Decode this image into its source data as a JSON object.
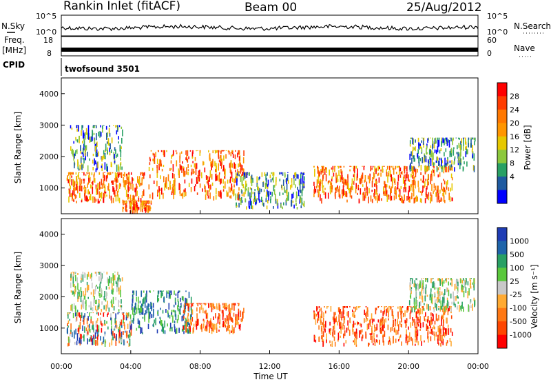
{
  "header": {
    "station": "Rankin Inlet (fitACF)",
    "beam": "Beam 00",
    "date": "25/Aug/2012"
  },
  "strips": {
    "noise": {
      "left_label": "N.Sky",
      "right_label": "N.Search",
      "left_ticks": [
        "10^5",
        "10^0"
      ],
      "right_ticks": [
        "10^5",
        "10^0"
      ]
    },
    "freq": {
      "left_label_top": "Freq.",
      "left_label_bottom": "[MHz]",
      "right_label": "Nave",
      "left_ticks": [
        "18",
        "8"
      ],
      "right_ticks": [
        "60",
        "0"
      ]
    },
    "cpid": {
      "left_label": "CPID",
      "text": "twofsound 3501"
    }
  },
  "chart_data": [
    {
      "type": "heatmap",
      "quantity": "Power",
      "ylabel": "Slant Range [km]",
      "ylim": [
        180,
        4500
      ],
      "yticks": [
        "1000",
        "2000",
        "3000",
        "4000"
      ],
      "xlim_hours": [
        0,
        24
      ],
      "colorbar": {
        "label": "Power [dB]",
        "ticks": [
          "28",
          "24",
          "20",
          "16",
          "12",
          "8",
          "4"
        ],
        "colors": [
          "#ff0000",
          "#ff3c00",
          "#ff7800",
          "#ff9600",
          "#e6c800",
          "#8cc83c",
          "#28a064",
          "#1e5aa0",
          "#0000ff"
        ]
      },
      "echo_regions": [
        {
          "t0": 0.3,
          "t1": 4.8,
          "r0": 500,
          "r1": 1500,
          "level": "high"
        },
        {
          "t0": 3.5,
          "t1": 5.2,
          "r0": 180,
          "r1": 600,
          "level": "high"
        },
        {
          "t0": 5.0,
          "t1": 10.5,
          "r0": 600,
          "r1": 2200,
          "level": "high"
        },
        {
          "t0": 14.5,
          "t1": 22.5,
          "r0": 500,
          "r1": 1700,
          "level": "high"
        },
        {
          "t0": 0.5,
          "t1": 3.5,
          "r0": 1500,
          "r1": 3000,
          "level": "low"
        },
        {
          "t0": 10.0,
          "t1": 14.0,
          "r0": 300,
          "r1": 1500,
          "level": "low"
        },
        {
          "t0": 20.0,
          "t1": 23.8,
          "r0": 1500,
          "r1": 2600,
          "level": "low"
        }
      ]
    },
    {
      "type": "heatmap",
      "quantity": "Velocity",
      "ylabel": "Slant Range [km]",
      "ylim": [
        180,
        4500
      ],
      "yticks": [
        "1000",
        "2000",
        "3000",
        "4000"
      ],
      "xlim_hours": [
        0,
        24
      ],
      "xlabel": "Time UT",
      "xticks": [
        "00:00",
        "04:00",
        "08:00",
        "12:00",
        "16:00",
        "20:00",
        "00:00"
      ],
      "colorbar": {
        "label": "Velocity [m s⁻¹]",
        "ticks": [
          "1000",
          "500",
          "100",
          "25",
          "-25",
          "-100",
          "-500",
          "-1000"
        ],
        "colors": [
          "#1e3cb4",
          "#1e64aa",
          "#28a064",
          "#5ac83c",
          "#c8c8c8",
          "#ffaa32",
          "#ff7814",
          "#ff4600",
          "#ff0000"
        ]
      },
      "echo_regions": [
        {
          "t0": 0.3,
          "t1": 4.0,
          "r0": 400,
          "r1": 1500,
          "level": "mixed"
        },
        {
          "t0": 4.0,
          "t1": 7.5,
          "r0": 800,
          "r1": 2200,
          "level": "negative"
        },
        {
          "t0": 7.0,
          "t1": 10.5,
          "r0": 800,
          "r1": 1800,
          "level": "positive"
        },
        {
          "t0": 14.5,
          "t1": 22.5,
          "r0": 400,
          "r1": 1700,
          "level": "positive"
        },
        {
          "t0": 0.5,
          "t1": 3.5,
          "r0": 1500,
          "r1": 2800,
          "level": "low"
        },
        {
          "t0": 20.0,
          "t1": 23.8,
          "r0": 1500,
          "r1": 2600,
          "level": "low"
        }
      ]
    }
  ]
}
